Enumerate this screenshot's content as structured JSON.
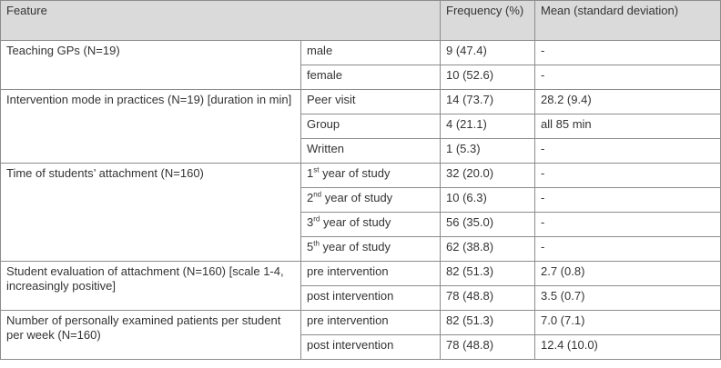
{
  "table": {
    "headers": [
      "Feature",
      "Frequency (%)",
      "Mean (standard deviation)"
    ],
    "groups": [
      {
        "feature": "Teaching GPs (N=19)",
        "rows": [
          {
            "sub": "male",
            "sup": "",
            "sub_rest": "",
            "freq": "9 (47.4)",
            "mean": "-"
          },
          {
            "sub": "female",
            "sup": "",
            "sub_rest": "",
            "freq": "10 (52.6)",
            "mean": "-"
          }
        ]
      },
      {
        "feature": "Intervention mode in practices (N=19) [duration in min]",
        "rows": [
          {
            "sub": "Peer visit",
            "sup": "",
            "sub_rest": "",
            "freq": "14 (73.7)",
            "mean": "28.2 (9.4)"
          },
          {
            "sub": "Group",
            "sup": "",
            "sub_rest": "",
            "freq": "4 (21.1)",
            "mean": "all 85 min"
          },
          {
            "sub": "Written",
            "sup": "",
            "sub_rest": "",
            "freq": "1 (5.3)",
            "mean": "-"
          }
        ]
      },
      {
        "feature": "Time of students’ attachment (N=160)",
        "rows": [
          {
            "sub": "1",
            "sup": "st",
            "sub_rest": " year of study",
            "freq": "32 (20.0)",
            "mean": "-"
          },
          {
            "sub": "2",
            "sup": "nd",
            "sub_rest": " year of study",
            "freq": "10 (6.3)",
            "mean": "-"
          },
          {
            "sub": "3",
            "sup": "rd",
            "sub_rest": " year of study",
            "freq": "56 (35.0)",
            "mean": "-"
          },
          {
            "sub": "5",
            "sup": "th",
            "sub_rest": " year of study",
            "freq": "62 (38.8)",
            "mean": "-"
          }
        ]
      },
      {
        "feature": "Student evaluation of attachment (N=160) [scale 1-4, increasingly positive]",
        "rows": [
          {
            "sub": "pre intervention",
            "sup": "",
            "sub_rest": "",
            "freq": "82 (51.3)",
            "mean": "2.7 (0.8)"
          },
          {
            "sub": "post intervention",
            "sup": "",
            "sub_rest": "",
            "freq": "78 (48.8)",
            "mean": "3.5 (0.7)"
          }
        ]
      },
      {
        "feature": "Number of personally examined patients per student per week (N=160)",
        "rows": [
          {
            "sub": "pre intervention",
            "sup": "",
            "sub_rest": "",
            "freq": "82 (51.3)",
            "mean": "7.0 (7.1)"
          },
          {
            "sub": "post intervention",
            "sup": "",
            "sub_rest": "",
            "freq": "78 (48.8)",
            "mean": "12.4 (10.0)"
          }
        ]
      }
    ]
  }
}
